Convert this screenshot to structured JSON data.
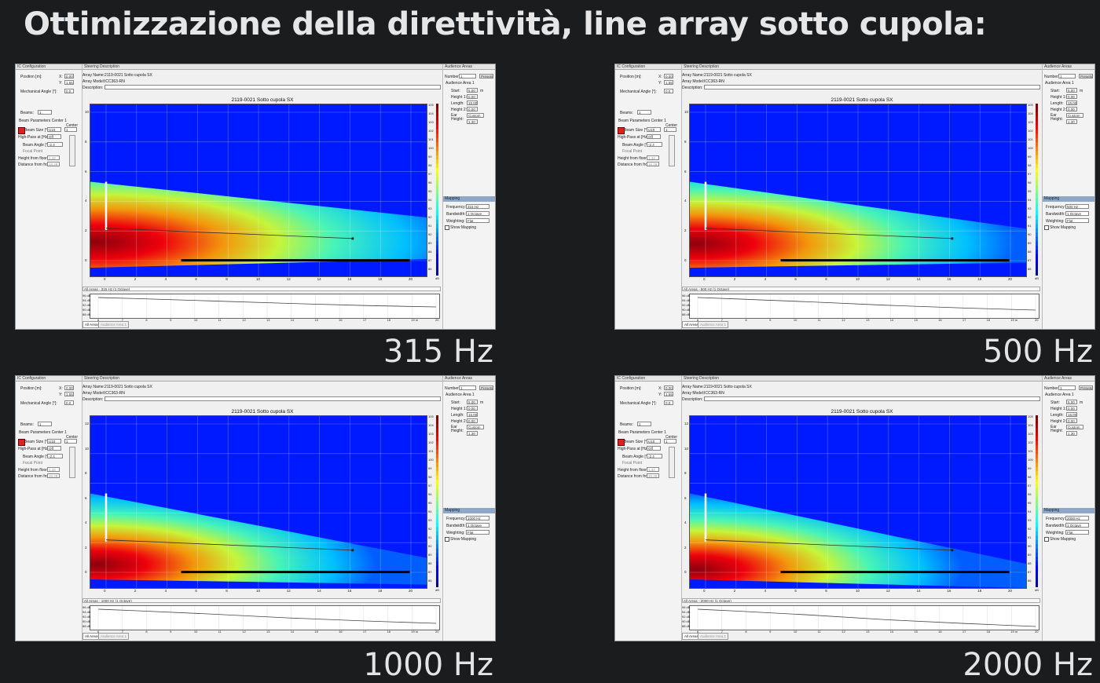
{
  "title": "Ottimizzazione della direttività, line array sotto cupola:",
  "panels": [
    {
      "freq_label": "315 Hz",
      "plot_title": "2119-0021 Sotto cupola SX",
      "status": "All Areas - 315 Hz (1 Octave)",
      "frequency_value": "315 Hz",
      "config": {
        "header": "IC Configuration",
        "position": "Position [m]:",
        "x": "X:",
        "x_val": "0.00",
        "y": "Y:",
        "y_val": "1.55",
        "mech": "Mechanical Angle [°]:",
        "mech_val": "0.0",
        "beams": "Beams:",
        "beams_val": "1",
        "beam_params": "Beam Parameters Center 1",
        "center": "Center",
        "beam_size": "Beam Size [°]:",
        "beam_size_val": "U10",
        "high_pass": "High-Pass at [Hz]:",
        "high_pass_val": "Off",
        "beam_angle": "Beam Angle [°]:",
        "beam_angle_val": "-2.4",
        "focal": "Focal Point",
        "height_floor": "Height from floor:",
        "height_floor_val": "1.32",
        "dist_front": "Distance from front:",
        "dist_front_val": "16.28"
      },
      "steering": {
        "header": "Steering Description",
        "array_name": "Array Name:",
        "array_name_val": "2119-0021 Sotto cupola SX",
        "array_model": "Array Model:",
        "array_model_val": "ICC363-RN",
        "description": "Description:"
      },
      "audience": {
        "header": "Audience Areas",
        "number": "Number:",
        "number_val": "1",
        "presets": "Presets",
        "area": "Audience Area 1",
        "start": "Start:",
        "start_val": "5.00",
        "h1": "Height 1:",
        "h1_val": "0.00",
        "length": "Length:",
        "length_val": "15.00",
        "h2": "Height 2:",
        "h2_val": "0.00",
        "ear": "Ear Height:",
        "ear_val": "Custom",
        "ear_h": "1.30",
        "unit": "m"
      },
      "mapping": {
        "header": "Mapping",
        "frequency": "Frequency:",
        "bandwidth": "Bandwidth:",
        "bandwidth_val": "1 Octave",
        "weighting": "Weighting:",
        "weighting_val": "Flat",
        "show": "Show Mapping"
      },
      "tabs": [
        "All Areas",
        "Audience Area 1"
      ]
    },
    {
      "freq_label": "500 Hz",
      "plot_title": "2119-0021 Sotto cupola SX",
      "status": "All Areas - 500 Hz (1 Octave)",
      "frequency_value": "500 Hz",
      "config": {
        "header": "IC Configuration",
        "position": "Position [m]:",
        "x": "X:",
        "x_val": "0.00",
        "y": "Y:",
        "y_val": "1.55",
        "mech": "Mechanical Angle [°]:",
        "mech_val": "0.0",
        "beams": "Beams:",
        "beams_val": "1",
        "beam_params": "Beam Parameters Center 1",
        "center": "Center",
        "beam_size": "Beam Size [°]:",
        "beam_size_val": "U10",
        "high_pass": "High-Pass at [Hz]:",
        "high_pass_val": "Off",
        "beam_angle": "Beam Angle [°]:",
        "beam_angle_val": "-2.4",
        "focal": "Focal Point",
        "height_floor": "Height from floor:",
        "height_floor_val": "1.32",
        "dist_front": "Distance from front:",
        "dist_front_val": "16.28"
      },
      "steering": {
        "header": "Steering Description",
        "array_name": "Array Name:",
        "array_name_val": "2119-0021 Sotto cupola SX",
        "array_model": "Array Model:",
        "array_model_val": "ICC363-RN",
        "description": "Description:"
      },
      "audience": {
        "header": "Audience Areas",
        "number": "Number:",
        "number_val": "1",
        "presets": "Presets",
        "area": "Audience Area 1",
        "start": "Start:",
        "start_val": "5.00",
        "h1": "Height 1:",
        "h1_val": "0.00",
        "length": "Length:",
        "length_val": "15.00",
        "h2": "Height 2:",
        "h2_val": "0.00",
        "ear": "Ear Height:",
        "ear_val": "Custom",
        "ear_h": "1.30",
        "unit": "m"
      },
      "mapping": {
        "header": "Mapping",
        "frequency": "Frequency:",
        "bandwidth": "Bandwidth:",
        "bandwidth_val": "1 Octave",
        "weighting": "Weighting:",
        "weighting_val": "Flat",
        "show": "Show Mapping"
      },
      "tabs": [
        "All Areas",
        "Audience Area 1"
      ]
    },
    {
      "freq_label": "1000 Hz",
      "plot_title": "2119-0021 Sotto cupola SX",
      "status": "All Areas - 1000 Hz (1 Octave)",
      "frequency_value": "1000 Hz",
      "config": {
        "header": "IC Configuration",
        "position": "Position [m]:",
        "x": "X:",
        "x_val": "0.00",
        "y": "Y:",
        "y_val": "1.55",
        "mech": "Mechanical Angle [°]:",
        "mech_val": "0.0",
        "beams": "Beams:",
        "beams_val": "1",
        "beam_params": "Beam Parameters Center 1",
        "center": "Center",
        "beam_size": "Beam Size [°]:",
        "beam_size_val": "U10",
        "high_pass": "High-Pass at [Hz]:",
        "high_pass_val": "Off",
        "beam_angle": "Beam Angle [°]:",
        "beam_angle_val": "-2.4",
        "focal": "Focal Point",
        "height_floor": "Height from floor:",
        "height_floor_val": "1.32",
        "dist_front": "Distance from front:",
        "dist_front_val": "16.28"
      },
      "steering": {
        "header": "Steering Description",
        "array_name": "Array Name:",
        "array_name_val": "2119-0021 Sotto cupola SX",
        "array_model": "Array Model:",
        "array_model_val": "ICC363-RN",
        "description": "Description:"
      },
      "audience": {
        "header": "Audience Areas",
        "number": "Number:",
        "number_val": "1",
        "presets": "Presets",
        "area": "Audience Area 1",
        "start": "Start:",
        "start_val": "5.00",
        "h1": "Height 1:",
        "h1_val": "0.00",
        "length": "Length:",
        "length_val": "15.00",
        "h2": "Height 2:",
        "h2_val": "0.00",
        "ear": "Ear Height:",
        "ear_val": "Custom",
        "ear_h": "1.30",
        "unit": "m"
      },
      "mapping": {
        "header": "Mapping",
        "frequency": "Frequency:",
        "bandwidth": "Bandwidth:",
        "bandwidth_val": "1 Octave",
        "weighting": "Weighting:",
        "weighting_val": "Flat",
        "show": "Show Mapping"
      },
      "tabs": [
        "All Areas",
        "Audience Area 1"
      ]
    },
    {
      "freq_label": "2000 Hz",
      "plot_title": "2119-0021 Sotto cupola SX",
      "status": "All Areas - 2000 Hz (1 Octave)",
      "frequency_value": "2000 Hz",
      "config": {
        "header": "IC Configuration",
        "position": "Position [m]:",
        "x": "X:",
        "x_val": "0.00",
        "y": "Y:",
        "y_val": "1.55",
        "mech": "Mechanical Angle [°]:",
        "mech_val": "0.0",
        "beams": "Beams:",
        "beams_val": "1",
        "beam_params": "Beam Parameters Center 1",
        "center": "Center",
        "beam_size": "Beam Size [°]:",
        "beam_size_val": "U10",
        "high_pass": "High-Pass at [Hz]:",
        "high_pass_val": "Off",
        "beam_angle": "Beam Angle [°]:",
        "beam_angle_val": "-2.4",
        "focal": "Focal Point",
        "height_floor": "Height from floor:",
        "height_floor_val": "1.32",
        "dist_front": "Distance from front:",
        "dist_front_val": "16.28"
      },
      "steering": {
        "header": "Steering Description",
        "array_name": "Array Name:",
        "array_name_val": "2119-0021 Sotto cupola SX",
        "array_model": "Array Model:",
        "array_model_val": "ICC363-RN",
        "description": "Description:"
      },
      "audience": {
        "header": "Audience Areas",
        "number": "Number:",
        "number_val": "1",
        "presets": "Presets",
        "area": "Audience Area 1",
        "start": "Start:",
        "start_val": "5.00",
        "h1": "Height 1:",
        "h1_val": "0.00",
        "length": "Length:",
        "length_val": "15.00",
        "h2": "Height 2:",
        "h2_val": "0.00",
        "ear": "Ear Height:",
        "ear_val": "Custom",
        "ear_h": "1.30",
        "unit": "m"
      },
      "mapping": {
        "header": "Mapping",
        "frequency": "Frequency:",
        "bandwidth": "Bandwidth:",
        "bandwidth_val": "1 Octave",
        "weighting": "Weighting:",
        "weighting_val": "Flat",
        "show": "Show Mapping"
      },
      "tabs": [
        "All Areas",
        "Audience Area 1"
      ]
    }
  ],
  "x_ticks": [
    "0",
    "2",
    "4",
    "6",
    "8",
    "10",
    "12",
    "14",
    "16",
    "18",
    "20"
  ],
  "y_ticks": [
    "0",
    "2",
    "4",
    "6",
    "8",
    "10"
  ],
  "y_ticks_hi": [
    "0",
    "2",
    "4",
    "6",
    "8",
    "10",
    "12"
  ],
  "cbar_ticks": [
    "105",
    "104",
    "103",
    "102",
    "101",
    "100",
    "99",
    "98",
    "97",
    "96",
    "95",
    "94",
    "93",
    "92",
    "91",
    "90",
    "89",
    "88",
    "87",
    "86"
  ],
  "cbar_unit": "dB",
  "spl_ticks": [
    "96 dB",
    "94 dB",
    "92 dB",
    "90 dB",
    "88 dB"
  ],
  "dist_ticks": [
    "6",
    "7",
    "8",
    "9",
    "10",
    "11",
    "12",
    "13",
    "14",
    "15",
    "16",
    "17",
    "18",
    "19 m",
    "20"
  ]
}
